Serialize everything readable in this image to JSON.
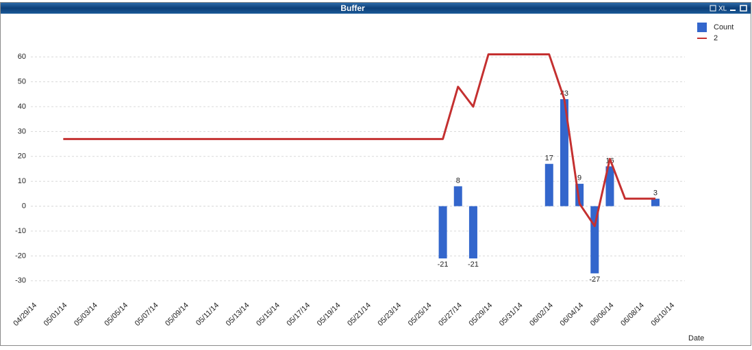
{
  "window": {
    "title": "Buffer",
    "xl_label": "XL"
  },
  "chart_data": {
    "type": "bar_line",
    "x_label": "Date",
    "categories": [
      "04/29/14",
      null,
      "05/01/14",
      null,
      "05/03/14",
      null,
      "05/05/14",
      null,
      "05/07/14",
      null,
      "05/09/14",
      null,
      "05/11/14",
      null,
      "05/13/14",
      null,
      "05/15/14",
      null,
      "05/17/14",
      null,
      "05/19/14",
      null,
      "05/21/14",
      null,
      "05/23/14",
      null,
      "05/25/14",
      null,
      "05/27/14",
      null,
      "05/29/14",
      null,
      "05/31/14",
      null,
      "06/02/14",
      null,
      "06/04/14",
      null,
      "06/06/14",
      null,
      "06/08/14",
      null,
      "06/10/14"
    ],
    "series": [
      {
        "name": "Count",
        "type": "bar",
        "color": "#3366cc",
        "values": [
          null,
          null,
          null,
          null,
          null,
          null,
          null,
          null,
          null,
          null,
          null,
          null,
          null,
          null,
          null,
          null,
          null,
          null,
          null,
          null,
          null,
          null,
          null,
          null,
          null,
          null,
          null,
          -21,
          8,
          -21,
          null,
          null,
          null,
          null,
          17,
          43,
          9,
          -27,
          16,
          null,
          null,
          3,
          null
        ]
      },
      {
        "name": "2",
        "type": "line",
        "color": "#c43030",
        "values": [
          null,
          null,
          27,
          27,
          27,
          27,
          27,
          27,
          27,
          27,
          27,
          27,
          27,
          27,
          27,
          27,
          27,
          27,
          27,
          27,
          27,
          27,
          27,
          27,
          27,
          27,
          27,
          27,
          48,
          40,
          61,
          61,
          61,
          61,
          61,
          43,
          1,
          -8,
          19,
          3,
          3,
          3,
          null
        ]
      }
    ],
    "ylim": [
      -35,
      65
    ],
    "yticks": [
      -30,
      -20,
      -10,
      0,
      10,
      20,
      30,
      40,
      50,
      60
    ],
    "grid": true,
    "legend": "top-right"
  }
}
